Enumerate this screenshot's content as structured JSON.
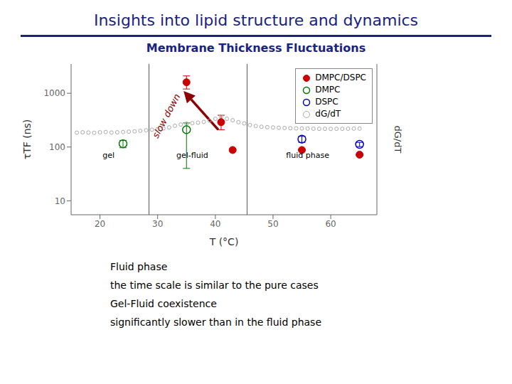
{
  "chart_data": {
    "type": "scatter",
    "title": "Insights into lipid structure and dynamics",
    "subtitle": "Membrane Thickness Fluctuations",
    "title_color": "#1a237e",
    "subtitle_color": "#1a237e",
    "x_label": "T (°C)",
    "y_label": "τTF (ns)",
    "y2_label": "dG/dT",
    "log": "y",
    "grid": false,
    "legend": "upper right",
    "xlim": [
      15,
      68
    ],
    "xticks": [
      20,
      30,
      40,
      50,
      60
    ],
    "ylim": [
      5.5,
      3500
    ],
    "yticks": [
      10,
      100,
      1000
    ],
    "vlines": [
      28.5,
      45.5
    ],
    "series": [
      {
        "name": "DMPC/DSPC",
        "color": "#cc0000",
        "marker": "filled_circle",
        "x": [
          35,
          41,
          43,
          55,
          65
        ],
        "values": [
          1600,
          290,
          88,
          88,
          72
        ],
        "error_low": [
          400,
          80,
          0,
          0,
          0
        ],
        "error_high": [
          500,
          100,
          0,
          0,
          0
        ]
      },
      {
        "name": "DMPC",
        "color": "#007700",
        "marker": "open_circle",
        "x": [
          24,
          35
        ],
        "values": [
          115,
          210
        ],
        "error_low": [
          18,
          170
        ],
        "error_high": [
          18,
          70
        ]
      },
      {
        "name": "DSPC",
        "color": "#0000bb",
        "marker": "open_circle",
        "x": [
          55,
          65
        ],
        "values": [
          140,
          112
        ],
        "error_low": [
          18,
          10
        ],
        "error_high": [
          18,
          10
        ]
      },
      {
        "name": "dG/dT",
        "color": "#aaaaaa",
        "marker": "small_open_circle",
        "x": [
          16,
          17,
          18,
          19,
          20,
          21,
          22,
          23,
          24,
          25,
          26,
          27,
          28,
          29,
          30,
          31,
          32,
          33,
          34,
          35,
          36,
          37,
          38,
          39,
          40,
          41,
          42,
          43,
          44,
          45,
          46,
          47,
          48,
          49,
          50,
          51,
          52,
          53,
          54,
          55,
          56,
          57,
          58,
          59,
          60,
          61,
          62,
          63,
          64,
          65
        ],
        "values": [
          185,
          188,
          186,
          184,
          188,
          190,
          186,
          188,
          190,
          193,
          196,
          200,
          205,
          210,
          215,
          222,
          232,
          248,
          262,
          272,
          278,
          284,
          294,
          308,
          335,
          365,
          335,
          315,
          290,
          275,
          256,
          246,
          238,
          234,
          231,
          228,
          226,
          224,
          222,
          221,
          220,
          219,
          218,
          218,
          217,
          218,
          218,
          219,
          220,
          220
        ]
      }
    ],
    "region_labels": [
      {
        "text": "gel",
        "x": 21.5,
        "y": 58
      },
      {
        "text": "gel-fluid",
        "x": 36,
        "y": 58
      },
      {
        "text": "fluid phase",
        "x": 56,
        "y": 58
      }
    ],
    "annotations": [
      {
        "text": "slow down",
        "x": 31.5,
        "y": 380,
        "color": "#8b0000"
      }
    ],
    "arrows": [
      {
        "from": [
          40.5,
          210
        ],
        "to": [
          34.5,
          1100
        ],
        "color": "#8b0000"
      }
    ],
    "notes": [
      "Fluid phase",
      "the time scale is similar to the pure cases",
      "Gel-Fluid coexistence",
      "significantly slower than in the fluid phase"
    ]
  }
}
